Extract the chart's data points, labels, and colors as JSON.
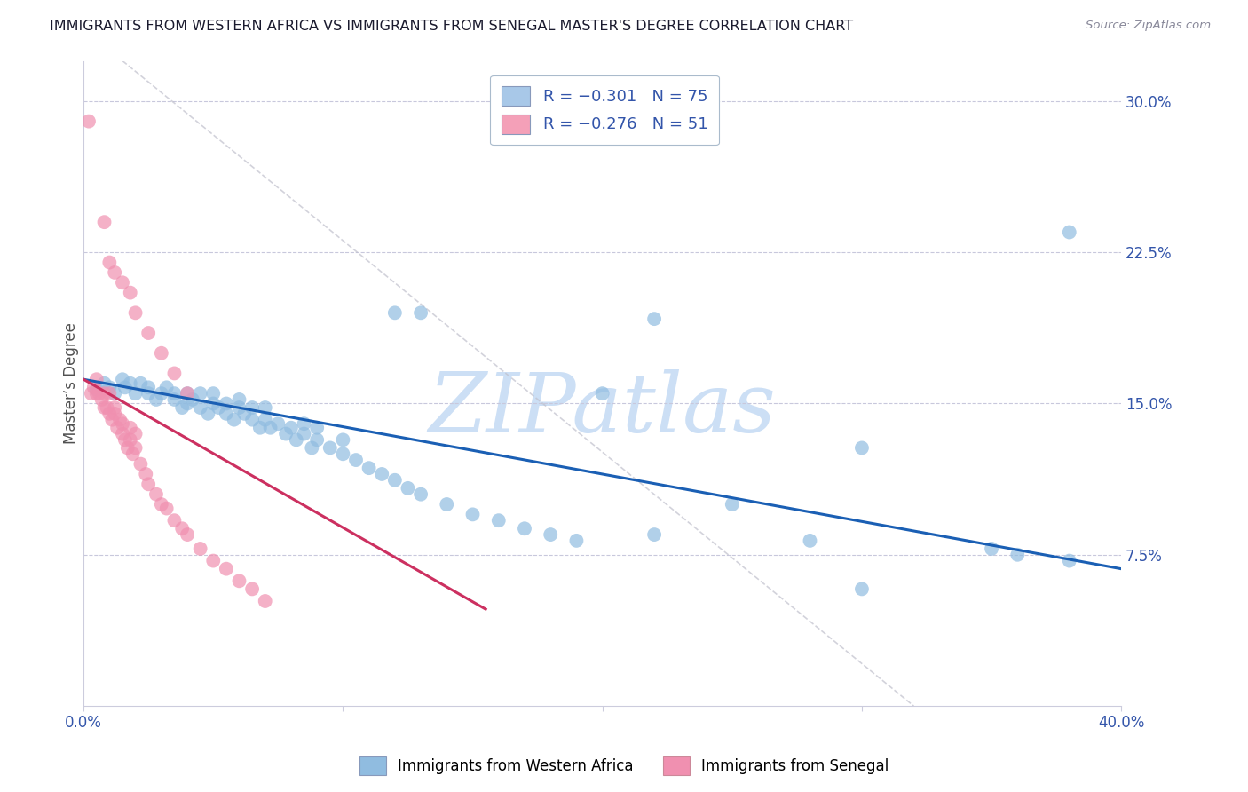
{
  "title": "IMMIGRANTS FROM WESTERN AFRICA VS IMMIGRANTS FROM SENEGAL MASTER'S DEGREE CORRELATION CHART",
  "source_text": "Source: ZipAtlas.com",
  "ylabel": "Master’s Degree",
  "right_ytick_labels": [
    "7.5%",
    "15.0%",
    "22.5%",
    "30.0%"
  ],
  "right_ytick_values": [
    0.075,
    0.15,
    0.225,
    0.3
  ],
  "xlim": [
    0.0,
    0.4
  ],
  "ylim": [
    0.0,
    0.32
  ],
  "legend_entries": [
    {
      "label": "R = −0.301   N = 75",
      "color": "#a8c8e8"
    },
    {
      "label": "R = −0.276   N = 51",
      "color": "#f4a0b8"
    }
  ],
  "watermark": "ZIPatlas",
  "watermark_color": "#ccdff5",
  "blue_scatter_x": [
    0.005,
    0.008,
    0.01,
    0.012,
    0.015,
    0.016,
    0.018,
    0.02,
    0.022,
    0.025,
    0.025,
    0.028,
    0.03,
    0.032,
    0.035,
    0.035,
    0.038,
    0.04,
    0.04,
    0.042,
    0.045,
    0.045,
    0.048,
    0.05,
    0.05,
    0.052,
    0.055,
    0.055,
    0.058,
    0.06,
    0.06,
    0.062,
    0.065,
    0.065,
    0.068,
    0.07,
    0.07,
    0.072,
    0.075,
    0.078,
    0.08,
    0.082,
    0.085,
    0.085,
    0.088,
    0.09,
    0.09,
    0.095,
    0.1,
    0.1,
    0.105,
    0.11,
    0.115,
    0.12,
    0.125,
    0.13,
    0.14,
    0.15,
    0.16,
    0.17,
    0.18,
    0.19,
    0.2,
    0.22,
    0.25,
    0.28,
    0.3,
    0.12,
    0.35,
    0.36,
    0.38,
    0.3,
    0.13,
    0.22,
    0.38
  ],
  "blue_scatter_y": [
    0.157,
    0.16,
    0.158,
    0.155,
    0.162,
    0.158,
    0.16,
    0.155,
    0.16,
    0.158,
    0.155,
    0.152,
    0.155,
    0.158,
    0.152,
    0.155,
    0.148,
    0.15,
    0.155,
    0.152,
    0.148,
    0.155,
    0.145,
    0.15,
    0.155,
    0.148,
    0.145,
    0.15,
    0.142,
    0.148,
    0.152,
    0.145,
    0.142,
    0.148,
    0.138,
    0.142,
    0.148,
    0.138,
    0.14,
    0.135,
    0.138,
    0.132,
    0.135,
    0.14,
    0.128,
    0.132,
    0.138,
    0.128,
    0.125,
    0.132,
    0.122,
    0.118,
    0.115,
    0.112,
    0.108,
    0.105,
    0.1,
    0.095,
    0.092,
    0.088,
    0.085,
    0.082,
    0.155,
    0.085,
    0.1,
    0.082,
    0.128,
    0.195,
    0.078,
    0.075,
    0.072,
    0.058,
    0.195,
    0.192,
    0.235
  ],
  "pink_scatter_x": [
    0.002,
    0.003,
    0.004,
    0.005,
    0.005,
    0.006,
    0.007,
    0.008,
    0.008,
    0.009,
    0.01,
    0.01,
    0.011,
    0.012,
    0.012,
    0.013,
    0.014,
    0.015,
    0.015,
    0.016,
    0.017,
    0.018,
    0.018,
    0.019,
    0.02,
    0.02,
    0.022,
    0.024,
    0.025,
    0.028,
    0.03,
    0.032,
    0.035,
    0.038,
    0.04,
    0.045,
    0.05,
    0.055,
    0.06,
    0.065,
    0.07,
    0.008,
    0.01,
    0.012,
    0.015,
    0.018,
    0.02,
    0.025,
    0.03,
    0.035,
    0.04
  ],
  "pink_scatter_y": [
    0.29,
    0.155,
    0.158,
    0.155,
    0.162,
    0.155,
    0.152,
    0.148,
    0.155,
    0.148,
    0.145,
    0.155,
    0.142,
    0.145,
    0.148,
    0.138,
    0.142,
    0.135,
    0.14,
    0.132,
    0.128,
    0.132,
    0.138,
    0.125,
    0.128,
    0.135,
    0.12,
    0.115,
    0.11,
    0.105,
    0.1,
    0.098,
    0.092,
    0.088,
    0.085,
    0.078,
    0.072,
    0.068,
    0.062,
    0.058,
    0.052,
    0.24,
    0.22,
    0.215,
    0.21,
    0.205,
    0.195,
    0.185,
    0.175,
    0.165,
    0.155
  ],
  "blue_line_x": [
    0.0,
    0.4
  ],
  "blue_line_y": [
    0.162,
    0.068
  ],
  "pink_line_x": [
    0.0,
    0.155
  ],
  "pink_line_y": [
    0.162,
    0.048
  ],
  "grey_line_x": [
    0.015,
    0.32
  ],
  "grey_line_y": [
    0.32,
    0.0
  ],
  "blue_color": "#90bce0",
  "pink_color": "#f090b0",
  "trend_blue": "#1a5fb4",
  "trend_pink": "#cc3060",
  "trend_grey": "#c0c0cc",
  "title_fontsize": 11.5,
  "source_fontsize": 9.5,
  "tick_color": "#3355aa",
  "ytick_label_color": "#3355aa"
}
